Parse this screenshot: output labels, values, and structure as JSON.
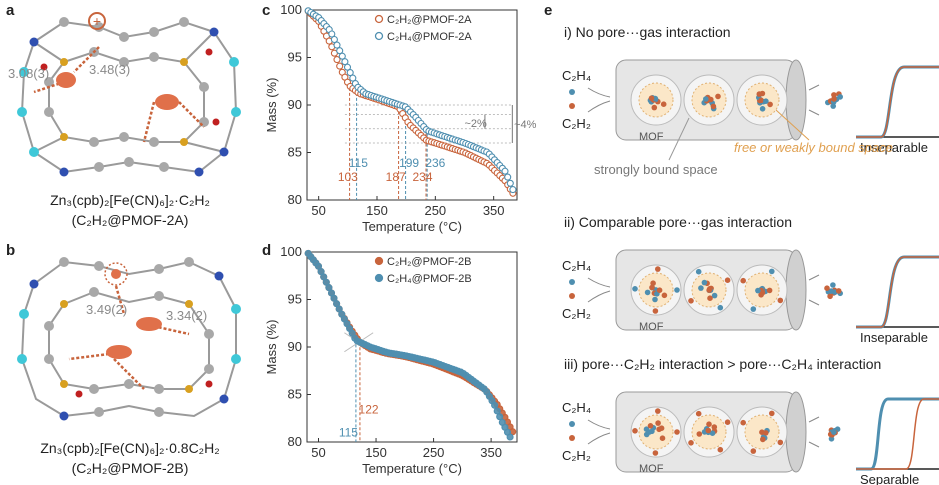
{
  "panel_labels": {
    "a": "a",
    "b": "b",
    "c": "c",
    "d": "d",
    "e": "e"
  },
  "panel_a": {
    "distance1": "3.48(3)",
    "distance2": "3.08(3)",
    "charge": "+",
    "formula_line1": "Zn₃(cpb)₂[Fe(CN)₆]₂·C₂H₂",
    "formula_line2": "(C₂H₂@PMOF-2A)"
  },
  "panel_b": {
    "distance1": "3.49(2)",
    "distance2": "3.34(2)",
    "formula_line1": "Zn₃(cpb)₂[Fe(CN)₆]₂·0.8C₂H₂",
    "formula_line2": "(C₂H₂@PMOF-2B)"
  },
  "colors": {
    "c2h2": "#c8643c",
    "c2h4": "#4f8fb0",
    "grey": "#9a9a9a",
    "tube": "#d8d8d8"
  },
  "chart_data": [
    {
      "type": "scatter",
      "panel": "c",
      "xlabel": "Temperature (°C)",
      "ylabel": "Mass (%)",
      "xlim": [
        30,
        390
      ],
      "ylim": [
        80,
        100
      ],
      "xticks": [
        50,
        150,
        250,
        350
      ],
      "yticks": [
        80,
        85,
        90,
        95,
        100
      ],
      "series": [
        {
          "name": "C₂H₂@PMOF-2A",
          "marker": "open-circle",
          "color": "#c8643c",
          "x": [
            30,
            50,
            70,
            90,
            103,
            120,
            150,
            187,
            205,
            234,
            260,
            300,
            340,
            370,
            385
          ],
          "y": [
            100,
            98.8,
            96.5,
            93.5,
            92,
            91.2,
            90.6,
            89.8,
            88,
            86.3,
            85.8,
            85,
            83.8,
            82,
            80.5
          ]
        },
        {
          "name": "C₂H₄@PMOF-2A",
          "marker": "open-circle",
          "color": "#4f8fb0",
          "x": [
            30,
            50,
            70,
            90,
            115,
            130,
            160,
            199,
            215,
            236,
            260,
            300,
            340,
            370,
            385
          ],
          "y": [
            100,
            99.2,
            97.8,
            95.2,
            92,
            91.2,
            90.6,
            89.8,
            88.8,
            87.3,
            86.8,
            86,
            85,
            83,
            80.8
          ]
        }
      ],
      "annotations": {
        "onset_labels": [
          "103",
          "115",
          "187",
          "199",
          "234",
          "236"
        ],
        "step_labels": [
          "~2%",
          "~4%"
        ]
      }
    },
    {
      "type": "scatter",
      "panel": "d",
      "xlabel": "Temperature (°C)",
      "ylabel": "Mass (%)",
      "xlim": [
        30,
        395
      ],
      "ylim": [
        80,
        100
      ],
      "xticks": [
        50,
        150,
        250,
        350
      ],
      "yticks": [
        80,
        85,
        90,
        95,
        100
      ],
      "series": [
        {
          "name": "C₂H₂@PMOF-2B",
          "marker": "filled-circle",
          "color": "#c8643c",
          "x": [
            30,
            50,
            70,
            90,
            110,
            122,
            140,
            170,
            200,
            250,
            300,
            340,
            360,
            375,
            390
          ],
          "y": [
            100,
            98.5,
            96,
            93.5,
            91.5,
            90.5,
            89.8,
            89.3,
            89,
            88.2,
            87,
            85.5,
            84,
            82.5,
            80.8
          ]
        },
        {
          "name": "C₂H₄@PMOF-2B",
          "marker": "filled-circle",
          "color": "#4f8fb0",
          "x": [
            30,
            50,
            70,
            90,
            108,
            115,
            140,
            170,
            200,
            250,
            300,
            340,
            355,
            370,
            385
          ],
          "y": [
            100,
            98.5,
            96,
            93.5,
            91.5,
            90.7,
            90,
            89.4,
            89.1,
            88.4,
            87.3,
            85.5,
            84,
            82,
            80.3
          ]
        }
      ],
      "annotations": {
        "onset_labels": [
          "115",
          "122"
        ]
      }
    }
  ],
  "panel_e": {
    "scenarios": [
      {
        "title": "i) No pore···gas interaction",
        "result": "Inseparable",
        "gas1": "C₂H₄",
        "gas2": "C₂H₂",
        "mof_label": "MOF",
        "label_strong": "strongly bound space",
        "label_free": "free or weakly bound space"
      },
      {
        "title": "ii) Comparable pore···gas interaction",
        "result": "Inseparable",
        "gas1": "C₂H₄",
        "gas2": "C₂H₂",
        "mof_label": "MOF"
      },
      {
        "title": "iii) pore···C₂H₂ interaction > pore···C₂H₄ interaction",
        "result": "Separable",
        "gas1": "C₂H₄",
        "gas2": "C₂H₂",
        "mof_label": "MOF"
      }
    ]
  }
}
